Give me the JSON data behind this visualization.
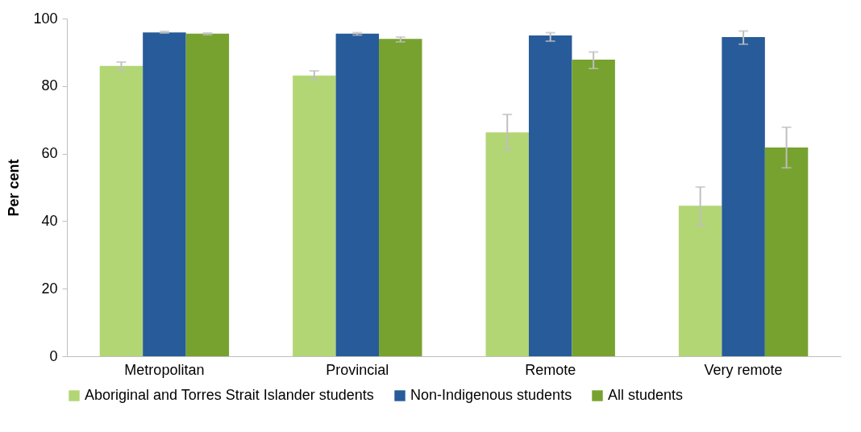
{
  "chart_data": {
    "type": "bar",
    "ylabel": "Per cent",
    "categories": [
      "Metropolitan",
      "Provincial",
      "Remote",
      "Very remote"
    ],
    "series": [
      {
        "name": "Aboriginal and Torres Strait Islander students",
        "color": "#b3d675",
        "values": [
          86,
          83.1,
          66.3,
          44.6
        ],
        "errors": [
          [
            84.7,
            87.1
          ],
          [
            81.9,
            84.5
          ],
          [
            61.1,
            71.6
          ],
          [
            38.7,
            50.1
          ]
        ]
      },
      {
        "name": "Non-Indigenous students",
        "color": "#275b99",
        "values": [
          95.9,
          95.5,
          95,
          94.5
        ],
        "errors": [
          [
            95.7,
            96.2
          ],
          [
            95.1,
            95.8
          ],
          [
            93.3,
            95.8
          ],
          [
            92.4,
            96.3
          ]
        ]
      },
      {
        "name": "All students",
        "color": "#77a22f",
        "values": [
          95.5,
          94,
          87.8,
          61.8
        ],
        "errors": [
          [
            95.2,
            95.7
          ],
          [
            93.1,
            94.5
          ],
          [
            85.2,
            90.1
          ],
          [
            55.8,
            67.8
          ]
        ]
      }
    ],
    "ylim": [
      0,
      100
    ],
    "yticks": [
      0,
      20,
      40,
      60,
      80,
      100
    ],
    "grid": false,
    "legend": "bottom"
  }
}
